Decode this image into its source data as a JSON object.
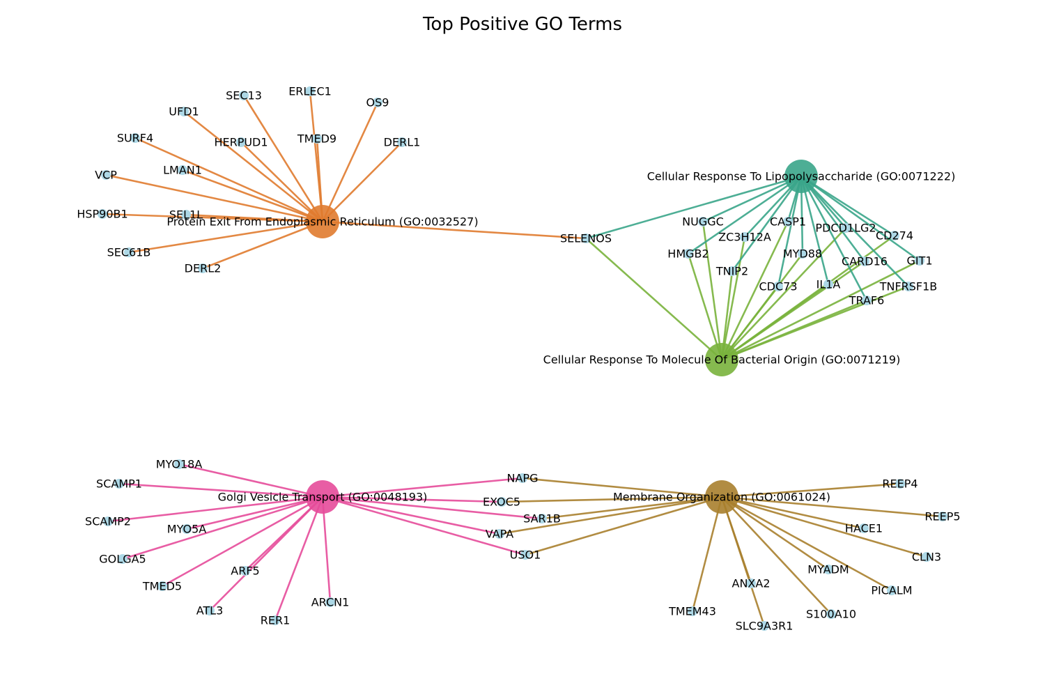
{
  "title": "Top Positive GO Terms",
  "colors": {
    "gene_node": "#add8e6",
    "protein_exit": "#e07b2f",
    "lps": "#3aa58a",
    "bacterial": "#79b23c",
    "golgi": "#e64b9a",
    "membrane": "#a8802e"
  },
  "hubs": [
    {
      "id": "protein_exit",
      "label": "Protein Exit From Endoplasmic Reticulum (GO:0032527)",
      "color_key": "protein_exit"
    },
    {
      "id": "lps",
      "label": "Cellular Response To Lipopolysaccharide (GO:0071222)",
      "color_key": "lps"
    },
    {
      "id": "bacterial",
      "label": "Cellular Response To Molecule Of Bacterial Origin (GO:0071219)",
      "color_key": "bacterial"
    },
    {
      "id": "golgi",
      "label": "Golgi Vesicle Transport (GO:0048193)",
      "color_key": "golgi"
    },
    {
      "id": "membrane",
      "label": "Membrane Organization (GO:0061024)",
      "color_key": "membrane"
    }
  ],
  "genes": [
    {
      "id": "SEC13",
      "label": "SEC13",
      "hubs": [
        "protein_exit"
      ]
    },
    {
      "id": "ERLEC1",
      "label": "ERLEC1",
      "hubs": [
        "protein_exit"
      ]
    },
    {
      "id": "UFD1",
      "label": "UFD1",
      "hubs": [
        "protein_exit"
      ]
    },
    {
      "id": "OS9",
      "label": "OS9",
      "hubs": [
        "protein_exit"
      ]
    },
    {
      "id": "SURF4",
      "label": "SURF4",
      "hubs": [
        "protein_exit"
      ]
    },
    {
      "id": "HERPUD1",
      "label": "HERPUD1",
      "hubs": [
        "protein_exit"
      ]
    },
    {
      "id": "TMED9",
      "label": "TMED9",
      "hubs": [
        "protein_exit"
      ]
    },
    {
      "id": "DERL1",
      "label": "DERL1",
      "hubs": [
        "protein_exit"
      ]
    },
    {
      "id": "VCP",
      "label": "VCP",
      "hubs": [
        "protein_exit"
      ]
    },
    {
      "id": "LMAN1",
      "label": "LMAN1",
      "hubs": [
        "protein_exit"
      ]
    },
    {
      "id": "HSP90B1",
      "label": "HSP90B1",
      "hubs": [
        "protein_exit"
      ]
    },
    {
      "id": "SEL1L",
      "label": "SEL1L",
      "hubs": [
        "protein_exit"
      ]
    },
    {
      "id": "SEC61B",
      "label": "SEC61B",
      "hubs": [
        "protein_exit"
      ]
    },
    {
      "id": "DERL2",
      "label": "DERL2",
      "hubs": [
        "protein_exit"
      ]
    },
    {
      "id": "SELENOS",
      "label": "SELENOS",
      "hubs": [
        "protein_exit",
        "lps",
        "bacterial"
      ]
    },
    {
      "id": "NUGGC",
      "label": "NUGGC",
      "hubs": [
        "lps",
        "bacterial"
      ]
    },
    {
      "id": "CASP1",
      "label": "CASP1",
      "hubs": [
        "lps",
        "bacterial"
      ]
    },
    {
      "id": "PDCD1LG2",
      "label": "PDCD1LG2",
      "hubs": [
        "lps",
        "bacterial"
      ]
    },
    {
      "id": "CD274",
      "label": "CD274",
      "hubs": [
        "lps",
        "bacterial"
      ]
    },
    {
      "id": "ZC3H12A",
      "label": "ZC3H12A",
      "hubs": [
        "lps",
        "bacterial"
      ]
    },
    {
      "id": "HMGB2",
      "label": "HMGB2",
      "hubs": [
        "lps",
        "bacterial"
      ]
    },
    {
      "id": "MYD88",
      "label": "MYD88",
      "hubs": [
        "lps",
        "bacterial"
      ]
    },
    {
      "id": "GIT1",
      "label": "GIT1",
      "hubs": [
        "lps",
        "bacterial"
      ]
    },
    {
      "id": "CARD16",
      "label": "CARD16",
      "hubs": [
        "lps",
        "bacterial"
      ]
    },
    {
      "id": "TNIP2",
      "label": "TNIP2",
      "hubs": [
        "lps",
        "bacterial"
      ]
    },
    {
      "id": "IL1A",
      "label": "IL1A",
      "hubs": [
        "lps",
        "bacterial"
      ]
    },
    {
      "id": "CDC73",
      "label": "CDC73",
      "hubs": [
        "lps",
        "bacterial"
      ]
    },
    {
      "id": "TNFRSF1B",
      "label": "TNFRSF1B",
      "hubs": [
        "lps",
        "bacterial"
      ]
    },
    {
      "id": "TRAF6",
      "label": "TRAF6",
      "hubs": [
        "lps",
        "bacterial"
      ]
    },
    {
      "id": "MYO18A",
      "label": "MYO18A",
      "hubs": [
        "golgi"
      ]
    },
    {
      "id": "SCAMP1",
      "label": "SCAMP1",
      "hubs": [
        "golgi"
      ]
    },
    {
      "id": "SCAMP2",
      "label": "SCAMP2",
      "hubs": [
        "golgi"
      ]
    },
    {
      "id": "MYO5A",
      "label": "MYO5A",
      "hubs": [
        "golgi"
      ]
    },
    {
      "id": "GOLGA5",
      "label": "GOLGA5",
      "hubs": [
        "golgi"
      ]
    },
    {
      "id": "ARF5",
      "label": "ARF5",
      "hubs": [
        "golgi"
      ]
    },
    {
      "id": "TMED5",
      "label": "TMED5",
      "hubs": [
        "golgi"
      ]
    },
    {
      "id": "ATL3",
      "label": "ATL3",
      "hubs": [
        "golgi"
      ]
    },
    {
      "id": "RER1",
      "label": "RER1",
      "hubs": [
        "golgi"
      ]
    },
    {
      "id": "ARCN1",
      "label": "ARCN1",
      "hubs": [
        "golgi"
      ]
    },
    {
      "id": "NAPG",
      "label": "NAPG",
      "hubs": [
        "golgi",
        "membrane"
      ]
    },
    {
      "id": "EXOC5",
      "label": "EXOC5",
      "hubs": [
        "golgi",
        "membrane"
      ]
    },
    {
      "id": "SAR1B",
      "label": "SAR1B",
      "hubs": [
        "golgi",
        "membrane"
      ]
    },
    {
      "id": "VAPA",
      "label": "VAPA",
      "hubs": [
        "golgi",
        "membrane"
      ]
    },
    {
      "id": "USO1",
      "label": "USO1",
      "hubs": [
        "golgi",
        "membrane"
      ]
    },
    {
      "id": "REEP4",
      "label": "REEP4",
      "hubs": [
        "membrane"
      ]
    },
    {
      "id": "REEP5",
      "label": "REEP5",
      "hubs": [
        "membrane"
      ]
    },
    {
      "id": "HACE1",
      "label": "HACE1",
      "hubs": [
        "membrane"
      ]
    },
    {
      "id": "CLN3",
      "label": "CLN3",
      "hubs": [
        "membrane"
      ]
    },
    {
      "id": "MYADM",
      "label": "MYADM",
      "hubs": [
        "membrane"
      ]
    },
    {
      "id": "ANXA2",
      "label": "ANXA2",
      "hubs": [
        "membrane"
      ]
    },
    {
      "id": "PICALM",
      "label": "PICALM",
      "hubs": [
        "membrane"
      ]
    },
    {
      "id": "TMEM43",
      "label": "TMEM43",
      "hubs": [
        "membrane"
      ]
    },
    {
      "id": "S100A10",
      "label": "S100A10",
      "hubs": [
        "membrane"
      ]
    },
    {
      "id": "SLC9A3R1",
      "label": "SLC9A3R1",
      "hubs": [
        "membrane"
      ]
    }
  ]
}
